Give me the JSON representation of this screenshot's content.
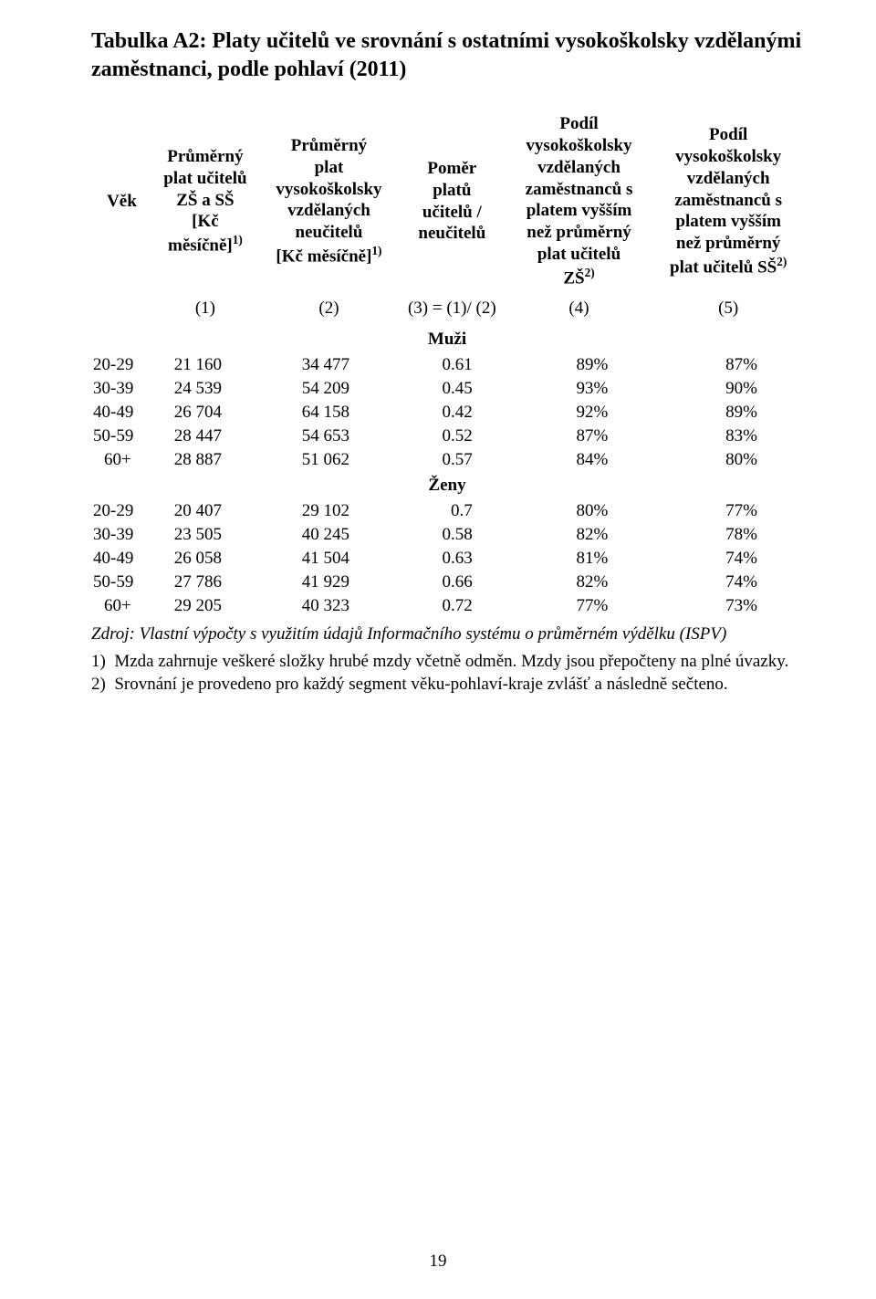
{
  "title": "Tabulka A2: Platy učitelů ve srovnání s ostatními vysokoškolsky vzdělanými zaměstnanci, podle pohlaví (2011)",
  "headers": {
    "vek": "Věk",
    "col1_line1": "Průměrný",
    "col1_line2": "plat učitelů",
    "col1_line3": "ZŠ a SŠ",
    "col1_line4": "[Kč",
    "col1_line5": "měsíčně]",
    "col1_sup": "1)",
    "col2_line1": "Průměrný",
    "col2_line2": "plat",
    "col2_line3": "vysokoškolsky",
    "col2_line4": "vzdělaných",
    "col2_line5": "neučitelů",
    "col2_line6": "[Kč měsíčně]",
    "col2_sup": "1)",
    "col3_line1": "Poměr",
    "col3_line2": "platů",
    "col3_line3": "učitelů /",
    "col3_line4": "neučitelů",
    "col4_line1": "Podíl",
    "col4_line2": "vysokoškolsky",
    "col4_line3": "vzdělaných",
    "col4_line4": "zaměstnanců s",
    "col4_line5": "platem vyšším",
    "col4_line6": "než průměrný",
    "col4_line7": "plat učitelů",
    "col4_line8": "ZŠ",
    "col4_sup": "2)",
    "col5_line1": "Podíl",
    "col5_line2": "vysokoškolsky",
    "col5_line3": "vzdělaných",
    "col5_line4": "zaměstnanců s",
    "col5_line5": "platem vyšším",
    "col5_line6": "než průměrný",
    "col5_line7": "plat učitelů SŠ",
    "col5_sup": "2)"
  },
  "index_row": {
    "c1": "(1)",
    "c2": "(2)",
    "c3": "(3) = (1)/ (2)",
    "c4": "(4)",
    "c5": "(5)"
  },
  "sections": {
    "muzi": "Muži",
    "zeny": "Ženy"
  },
  "rows_muzi": [
    {
      "age": "20-29",
      "c1": "21 160",
      "c2": "34 477",
      "c3": "0.61",
      "c4": "89%",
      "c5": "87%"
    },
    {
      "age": "30-39",
      "c1": "24 539",
      "c2": "54 209",
      "c3": "0.45",
      "c4": "93%",
      "c5": "90%"
    },
    {
      "age": "40-49",
      "c1": "26 704",
      "c2": "64 158",
      "c3": "0.42",
      "c4": "92%",
      "c5": "89%"
    },
    {
      "age": "50-59",
      "c1": "28 447",
      "c2": "54 653",
      "c3": "0.52",
      "c4": "87%",
      "c5": "83%"
    },
    {
      "age": "60+",
      "c1": "28 887",
      "c2": "51 062",
      "c3": "0.57",
      "c4": "84%",
      "c5": "80%"
    }
  ],
  "rows_zeny": [
    {
      "age": "20-29",
      "c1": "20 407",
      "c2": "29 102",
      "c3": "0.7",
      "c4": "80%",
      "c5": "77%"
    },
    {
      "age": "30-39",
      "c1": "23 505",
      "c2": "40 245",
      "c3": "0.58",
      "c4": "82%",
      "c5": "78%"
    },
    {
      "age": "40-49",
      "c1": "26 058",
      "c2": "41 504",
      "c3": "0.63",
      "c4": "81%",
      "c5": "74%"
    },
    {
      "age": "50-59",
      "c1": "27 786",
      "c2": "41 929",
      "c3": "0.66",
      "c4": "82%",
      "c5": "74%"
    },
    {
      "age": "60+",
      "c1": "29 205",
      "c2": "40 323",
      "c3": "0.72",
      "c4": "77%",
      "c5": "73%"
    }
  ],
  "source": "Zdroj: Vlastní výpočty s využitím údajů  Informačního systému o průměrném výdělku (ISPV)",
  "notes": [
    {
      "num": "1)",
      "text": "Mzda zahrnuje veškeré složky hrubé mzdy včetně odměn. Mzdy jsou přepočteny na plné úvazky."
    },
    {
      "num": "2)",
      "text": "Srovnání je provedeno pro každý segment věku-pohlaví-kraje zvlášť a následně sečteno."
    }
  ],
  "page_number": "19"
}
